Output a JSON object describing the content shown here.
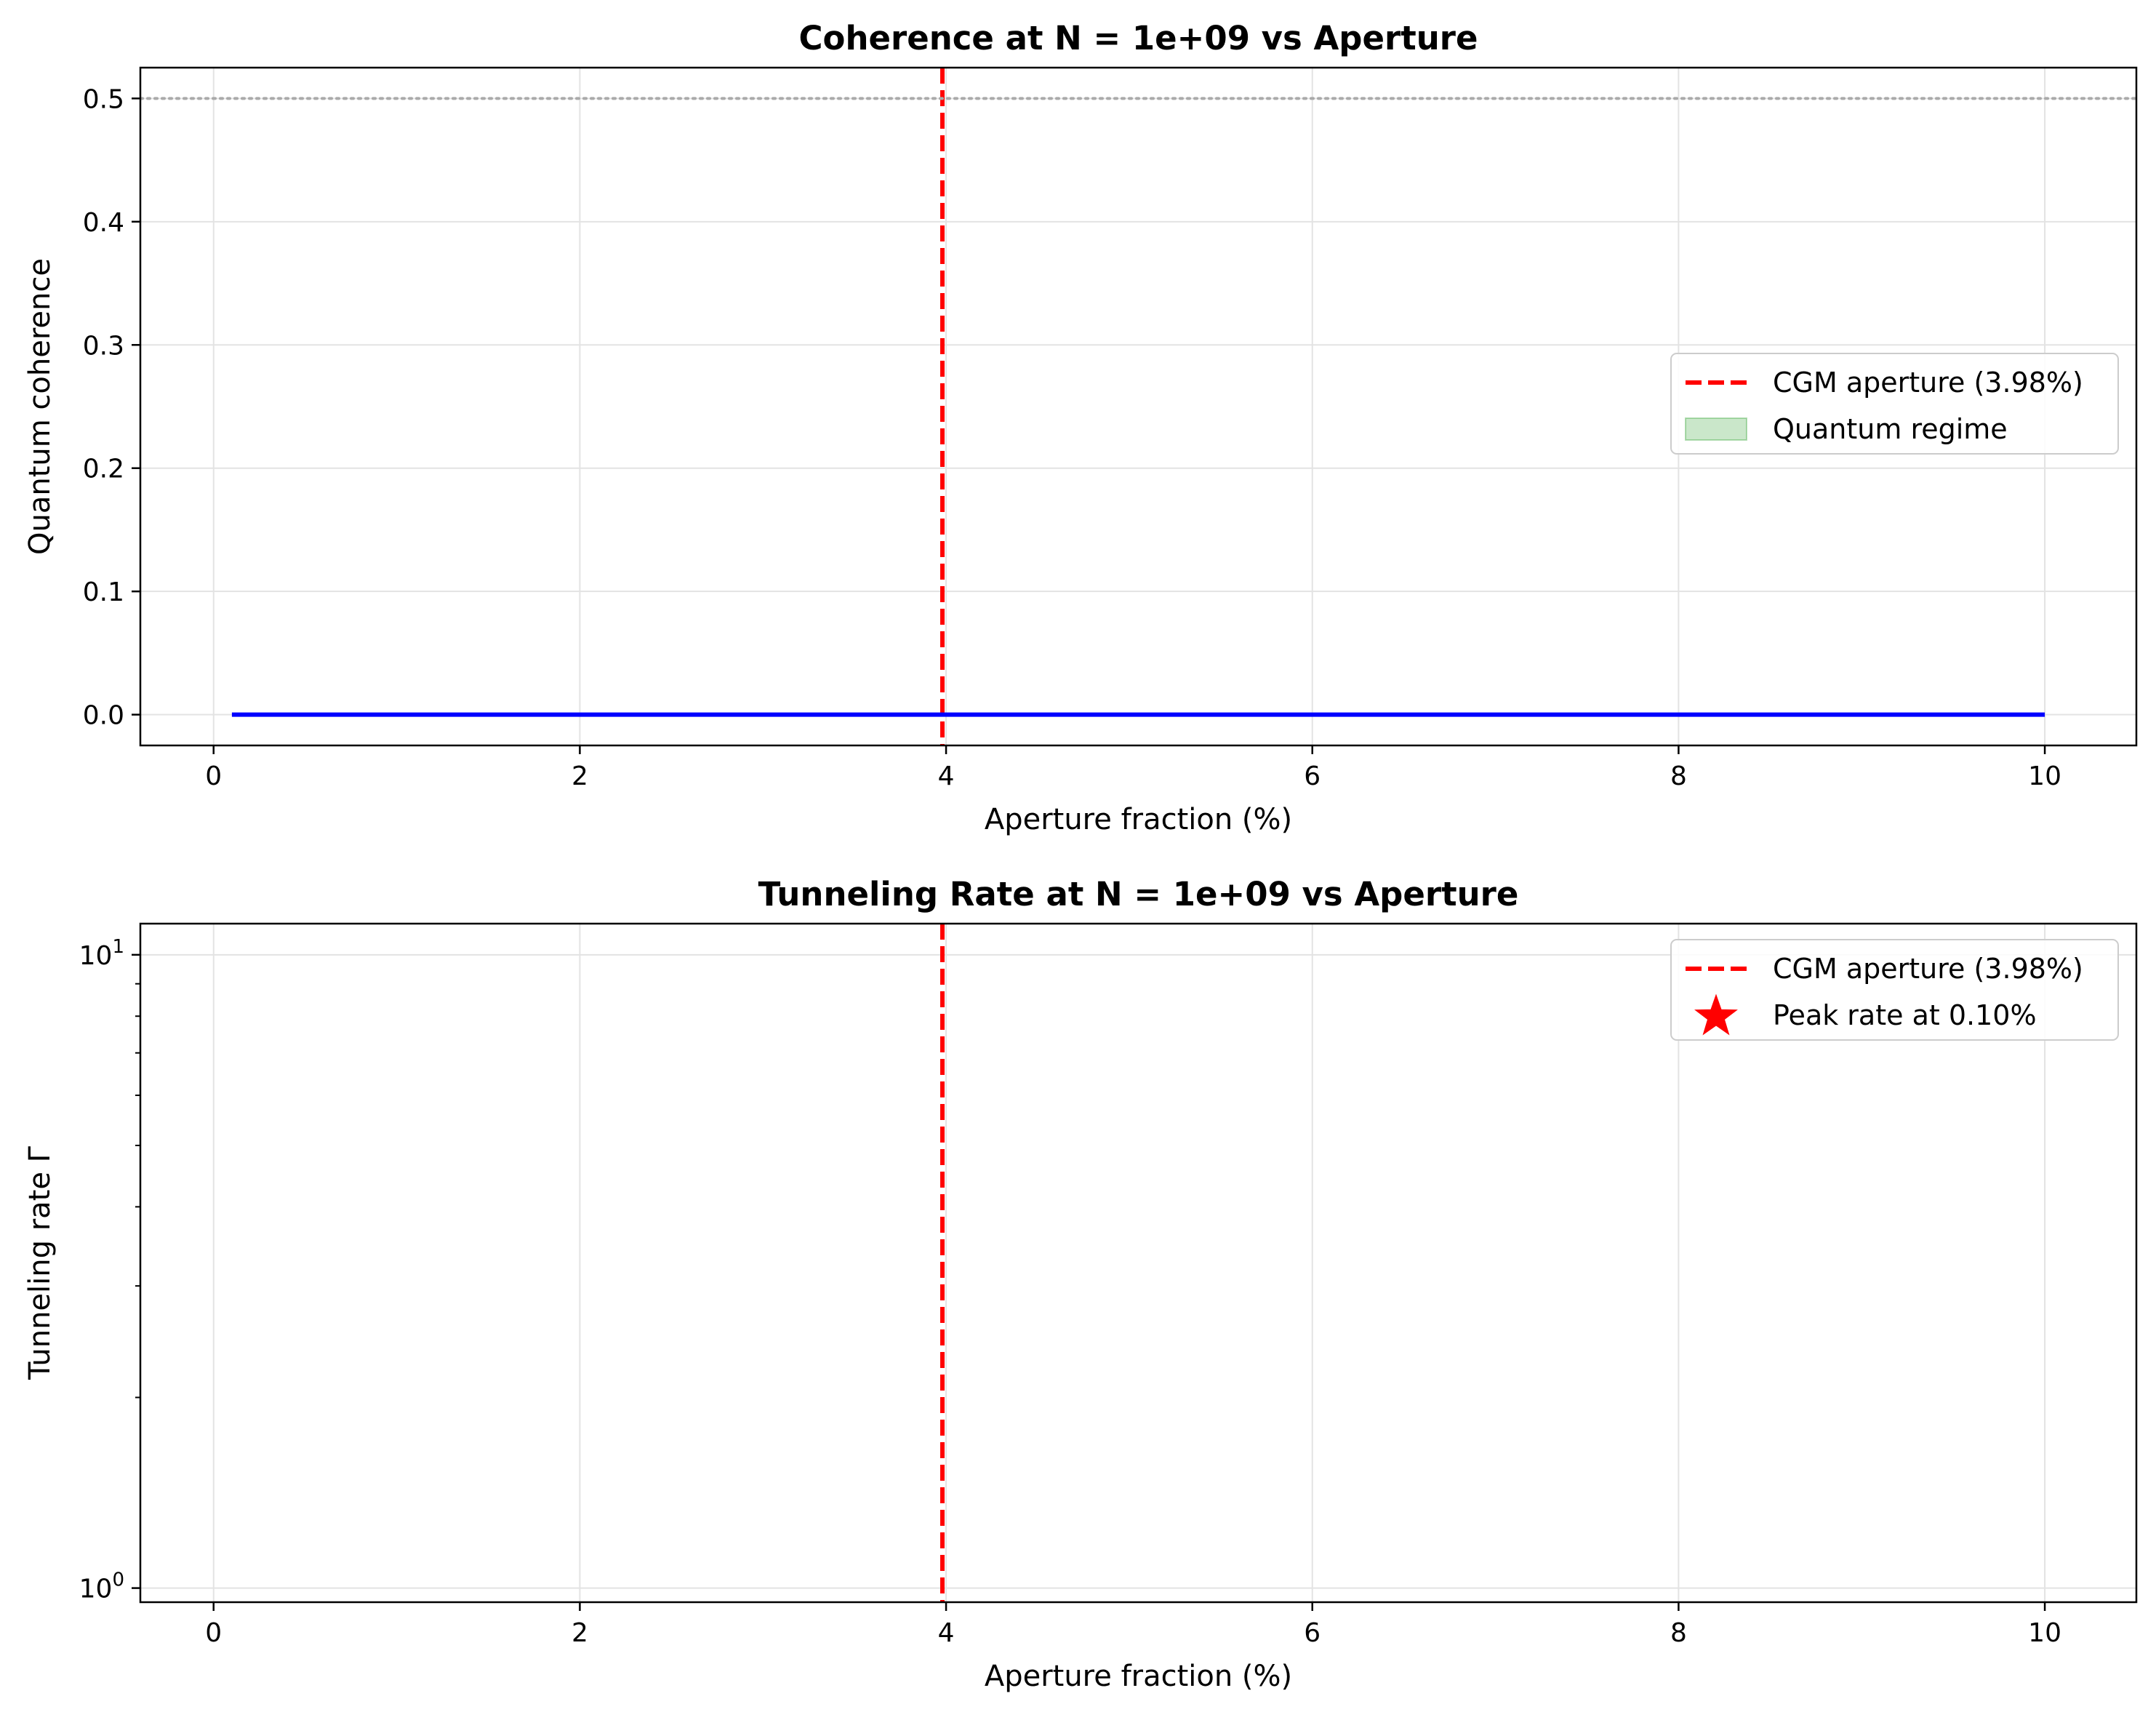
{
  "chart_data": [
    {
      "type": "line",
      "title": "Coherence at N = 1e+09 vs Aperture",
      "xlabel": "Aperture fraction (%)",
      "ylabel": "Quantum coherence",
      "xlim": [
        -0.4,
        10.5
      ],
      "ylim": [
        -0.025,
        0.525
      ],
      "xticks": [
        0,
        2,
        4,
        6,
        8,
        10
      ],
      "xtick_labels": [
        "0",
        "2",
        "4",
        "6",
        "8",
        "10"
      ],
      "yticks": [
        0.0,
        0.1,
        0.2,
        0.3,
        0.4,
        0.5
      ],
      "ytick_labels": [
        "0.0",
        "0.1",
        "0.2",
        "0.3",
        "0.4",
        "0.5"
      ],
      "grid": true,
      "legend_position": "center-right",
      "series": [
        {
          "x": [
            0.1,
            10.0
          ],
          "y": [
            0.0,
            0.0
          ],
          "color": "#0000ff"
        }
      ],
      "reference_lines": [
        {
          "orientation": "vertical",
          "value": 3.98,
          "color": "#ff0000",
          "style": "dashed"
        },
        {
          "orientation": "horizontal",
          "value": 0.5,
          "color": "#aaaaaa",
          "style": "dotted"
        }
      ],
      "legend": [
        {
          "label": "CGM aperture (3.98%)",
          "kind": "dashed-line",
          "color": "#ff0000"
        },
        {
          "label": "Quantum regime",
          "kind": "patch",
          "color": "#2ca02c"
        }
      ]
    },
    {
      "type": "line",
      "title": "Tunneling Rate at N = 1e+09 vs Aperture",
      "xlabel": "Aperture fraction (%)",
      "ylabel": "Tunneling rate Γ",
      "xlim": [
        -0.4,
        10.5
      ],
      "ylim": [
        0.95,
        11.2
      ],
      "yscale": "log",
      "xticks": [
        0,
        2,
        4,
        6,
        8,
        10
      ],
      "xtick_labels": [
        "0",
        "2",
        "4",
        "6",
        "8",
        "10"
      ],
      "yticks": [
        1,
        10
      ],
      "ytick_labels": [
        {
          "base": "10",
          "exp": "0"
        },
        {
          "base": "10",
          "exp": "1"
        }
      ],
      "minor_yticks": [
        2,
        3,
        4,
        5,
        6,
        7,
        8,
        9
      ],
      "grid": true,
      "legend_position": "top-right",
      "reference_lines": [
        {
          "orientation": "vertical",
          "value": 3.98,
          "color": "#ff0000",
          "style": "dashed"
        }
      ],
      "legend": [
        {
          "label": "CGM aperture (3.98%)",
          "kind": "dashed-line",
          "color": "#ff0000"
        },
        {
          "label": "Peak rate at 0.10%",
          "kind": "star",
          "color": "#ff0000"
        }
      ]
    }
  ]
}
